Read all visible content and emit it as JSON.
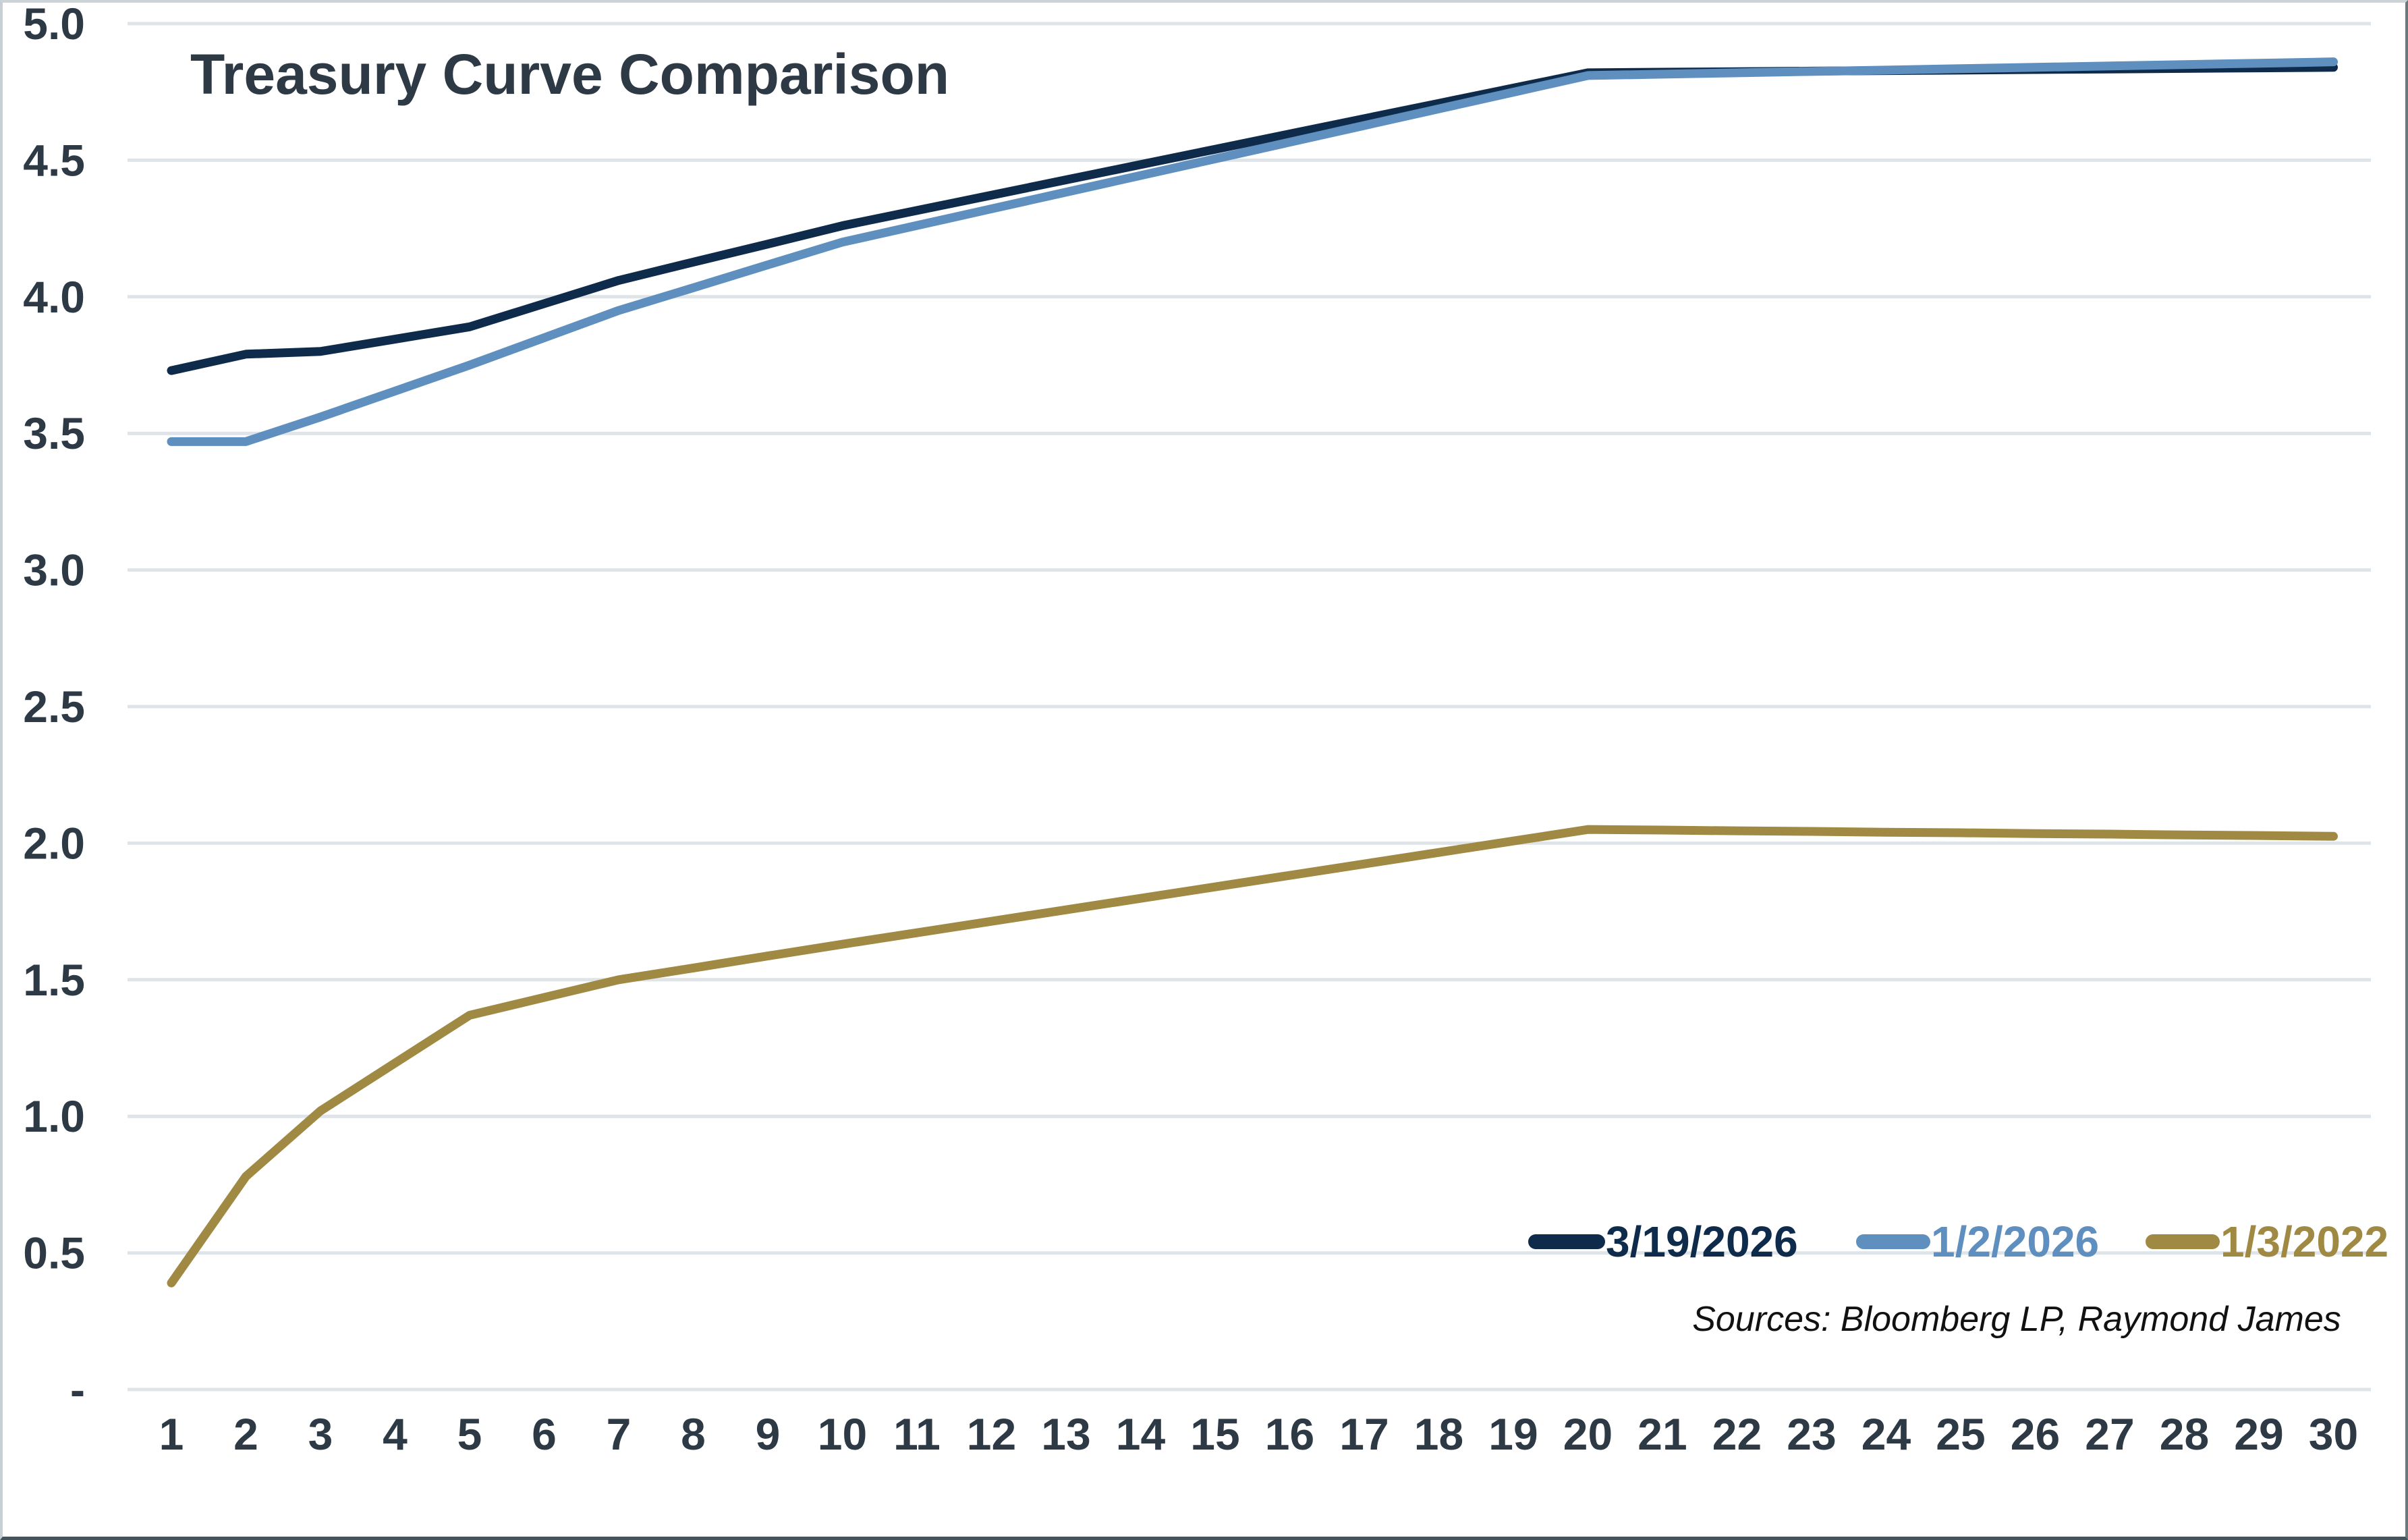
{
  "chart_data": {
    "type": "line",
    "title": "Treasury Curve Comparison",
    "xlabel": "",
    "ylabel": "",
    "x": [
      1,
      2,
      3,
      4,
      5,
      6,
      7,
      8,
      9,
      10,
      11,
      12,
      13,
      14,
      15,
      16,
      17,
      18,
      19,
      20,
      21,
      22,
      23,
      24,
      25,
      26,
      27,
      28,
      29,
      30
    ],
    "ylim": [
      0,
      5.0
    ],
    "ytick_values": [
      0,
      0.5,
      1.0,
      1.5,
      2.0,
      2.5,
      3.0,
      3.5,
      4.0,
      4.5,
      5.0
    ],
    "ytick_labels": [
      "-",
      "0.5",
      "1.0",
      "1.5",
      "2.0",
      "2.5",
      "3.0",
      "3.5",
      "4.0",
      "4.5",
      "5.0"
    ],
    "grid": "horizontal-only",
    "legend_position": "inside-bottom-right",
    "series": [
      {
        "name": "3/19/2026",
        "color": "#0f2b4b",
        "values": [
          3.73,
          3.79,
          3.8,
          3.845,
          3.89,
          3.975,
          4.06,
          4.127,
          4.193,
          4.26,
          4.316,
          4.372,
          4.428,
          4.484,
          4.54,
          4.596,
          4.652,
          4.708,
          4.764,
          4.82,
          4.822,
          4.824,
          4.826,
          4.828,
          4.83,
          4.832,
          4.834,
          4.836,
          4.838,
          4.84
        ]
      },
      {
        "name": "1/2/2026",
        "color": "#5e8fbe",
        "values": [
          3.47,
          3.47,
          3.56,
          3.655,
          3.75,
          3.85,
          3.95,
          4.033,
          4.117,
          4.2,
          4.261,
          4.322,
          4.383,
          4.444,
          4.505,
          4.566,
          4.627,
          4.688,
          4.749,
          4.81,
          4.815,
          4.82,
          4.825,
          4.83,
          4.835,
          4.84,
          4.845,
          4.85,
          4.855,
          4.86
        ]
      },
      {
        "name": "1/3/2022",
        "color": "#a08a43",
        "values": [
          0.39,
          0.78,
          1.02,
          1.195,
          1.37,
          1.435,
          1.5,
          1.543,
          1.587,
          1.63,
          1.672,
          1.714,
          1.756,
          1.798,
          1.84,
          1.882,
          1.924,
          1.966,
          2.008,
          2.05,
          2.048,
          2.045,
          2.043,
          2.04,
          2.038,
          2.035,
          2.033,
          2.03,
          2.028,
          2.025
        ]
      }
    ],
    "source_note": "Sources: Bloomberg LP, Raymond James"
  },
  "styles": {
    "background": "#ffffff",
    "gridline_color": "#dee4e8",
    "label_color": "#2d3a45",
    "source_color": "#111111"
  }
}
